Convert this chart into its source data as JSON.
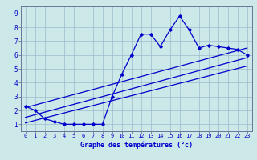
{
  "xlabel": "Graphe des températures (°c)",
  "bg_color": "#cce8e8",
  "line_color": "#0000cc",
  "grid_color": "#99bbcc",
  "spine_color": "#667799",
  "xlim": [
    -0.5,
    23.5
  ],
  "ylim": [
    0.5,
    9.5
  ],
  "xticks": [
    0,
    1,
    2,
    3,
    4,
    5,
    6,
    7,
    8,
    9,
    10,
    11,
    12,
    13,
    14,
    15,
    16,
    17,
    18,
    19,
    20,
    21,
    22,
    23
  ],
  "yticks": [
    1,
    2,
    3,
    4,
    5,
    6,
    7,
    8,
    9
  ],
  "main_x": [
    0,
    1,
    2,
    3,
    4,
    5,
    6,
    7,
    8,
    9,
    10,
    11,
    12,
    13,
    14,
    15,
    16,
    17,
    18,
    19,
    20,
    21,
    22,
    23
  ],
  "main_y": [
    2.3,
    2.0,
    1.4,
    1.2,
    1.0,
    1.0,
    1.0,
    1.0,
    1.0,
    3.0,
    4.6,
    6.0,
    7.5,
    7.5,
    6.6,
    7.8,
    8.8,
    7.8,
    6.5,
    6.7,
    6.6,
    6.5,
    6.4,
    6.0
  ],
  "line1_x": [
    0,
    23
  ],
  "line1_y": [
    2.2,
    6.5
  ],
  "line2_x": [
    0,
    23
  ],
  "line2_y": [
    1.5,
    5.8
  ],
  "line3_x": [
    0,
    23
  ],
  "line3_y": [
    1.1,
    5.2
  ],
  "tick_fontsize": 5.0,
  "xlabel_fontsize": 6.0
}
